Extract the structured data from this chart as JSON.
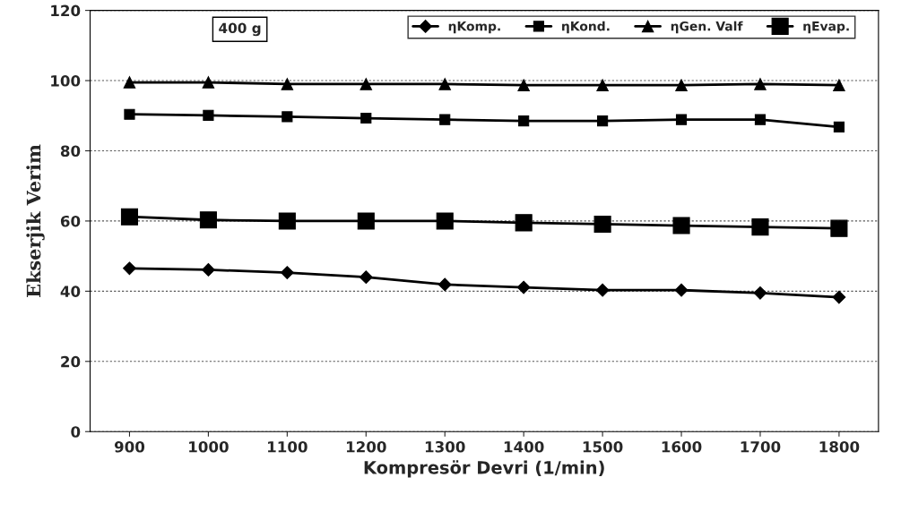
{
  "chart_data": {
    "type": "line",
    "xlabel": "Kompresör Devri (1/min)",
    "ylabel": "Ekserjik Verim",
    "categories": [
      "900",
      "1000",
      "1100",
      "1200",
      "1300",
      "1400",
      "1500",
      "1600",
      "1700",
      "1800"
    ],
    "series": [
      {
        "name": "ηKomp.",
        "color": "#000000",
        "marker": "diamond",
        "values": [
          46.5,
          46.1,
          45.3,
          44.0,
          41.9,
          41.1,
          40.3,
          40.3,
          39.5,
          38.3
        ]
      },
      {
        "name": "ηKond.",
        "color": "#000000",
        "marker": "square",
        "values": [
          90.4,
          90.1,
          89.7,
          89.3,
          88.9,
          88.5,
          88.5,
          88.9,
          88.9,
          86.8
        ]
      },
      {
        "name": "ηGen. Valf",
        "color": "#000000",
        "marker": "triangle",
        "values": [
          99.5,
          99.5,
          99.0,
          99.0,
          99.0,
          98.7,
          98.7,
          98.7,
          99.0,
          98.7
        ]
      },
      {
        "name": "ηEvap.",
        "color": "#000000",
        "marker": "square",
        "values": [
          61.2,
          60.3,
          60.0,
          60.0,
          60.0,
          59.5,
          59.1,
          58.7,
          58.3,
          57.9
        ]
      }
    ],
    "ylim": [
      0,
      120
    ],
    "yticks": [
      0,
      20,
      40,
      60,
      80,
      100,
      120
    ],
    "grid": "y",
    "legend": "top right",
    "annotations": [
      "400 g"
    ]
  }
}
